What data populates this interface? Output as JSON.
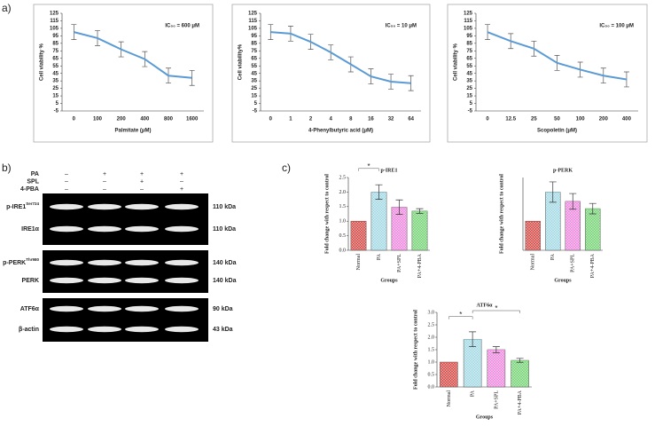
{
  "panel_labels": [
    "a)",
    "b)",
    "c)"
  ],
  "blot": {
    "treatments": [
      {
        "name": "PA",
        "signs": [
          "–",
          "+",
          "+",
          "+"
        ]
      },
      {
        "name": "SPL",
        "signs": [
          "–",
          "–",
          "+",
          "–"
        ]
      },
      {
        "name": "4-PBA",
        "signs": [
          "–",
          "–",
          "–",
          "+"
        ]
      }
    ],
    "proteins": [
      {
        "name": "p-IRE1",
        "superscript": "Ser724",
        "size": "110 kDa"
      },
      {
        "name": "IRE1α",
        "size": "110 kDa"
      },
      {
        "name": "p-PERK",
        "superscript": "Thr980",
        "size": "140 kDa"
      },
      {
        "name": "PERK",
        "size": "140 kDa"
      },
      {
        "name": "ATF6α",
        "size": "90 kDa"
      },
      {
        "name": "β-actin",
        "size": "43 kDa"
      }
    ]
  },
  "chart_data": [
    {
      "type": "line",
      "annotation": "IC₅₀ = 600 μM",
      "x_label": "Palmitate (μM)",
      "y_label": "Cell viability %",
      "categories": [
        "0",
        "100",
        "200",
        "400",
        "800",
        "1600"
      ],
      "values": [
        100,
        92,
        77,
        64,
        42,
        39
      ],
      "errors": [
        10,
        10,
        10,
        10,
        10,
        10
      ],
      "color": "#5b9bd5",
      "ylim": [
        -5,
        125
      ],
      "yticks": [
        -5,
        5,
        15,
        25,
        35,
        45,
        55,
        65,
        75,
        85,
        95,
        105,
        115,
        125
      ]
    },
    {
      "type": "line",
      "annotation": "IC₅₀ = 10 μM",
      "x_label": "4-Phenylbutyric acid (μM)",
      "y_label": "Cell viability%",
      "categories": [
        "0",
        "1",
        "2",
        "4",
        "8",
        "16",
        "32",
        "64"
      ],
      "values": [
        100,
        98,
        87,
        73,
        57,
        41,
        34,
        32
      ],
      "errors": [
        10,
        10,
        10,
        10,
        10,
        10,
        10,
        10
      ],
      "color": "#5b9bd5",
      "ylim": [
        -5,
        125
      ],
      "yticks": [
        -5,
        5,
        15,
        25,
        35,
        45,
        55,
        65,
        75,
        85,
        95,
        105,
        115,
        125
      ]
    },
    {
      "type": "line",
      "annotation": "IC₅₀ = 100 μM",
      "x_label": "Scopoletin (μM)",
      "y_label": "Cell viability %",
      "categories": [
        "0",
        "12.5",
        "25",
        "50",
        "100",
        "200",
        "400"
      ],
      "values": [
        100,
        88,
        78,
        59,
        50,
        42,
        37
      ],
      "errors": [
        10,
        10,
        10,
        10,
        10,
        10,
        10
      ],
      "color": "#5b9bd5",
      "ylim": [
        -5,
        125
      ],
      "yticks": [
        -5,
        5,
        15,
        25,
        35,
        45,
        55,
        65,
        75,
        85,
        95,
        105,
        115,
        125
      ]
    },
    {
      "type": "bar",
      "title": "p-IRE1",
      "x_label": "Groups",
      "y_label": "Fold change with respect to control",
      "categories": [
        "Normal",
        "PA",
        "PA+SPL",
        "PA+4-PBA"
      ],
      "values": [
        1.0,
        2.0,
        1.48,
        1.35
      ],
      "errors": [
        0,
        0.25,
        0.25,
        0.08
      ],
      "colors": [
        "#d9534f",
        "#a8dbe6",
        "#f08fe0",
        "#7ed67e"
      ],
      "annotations": [
        "*"
      ],
      "ylim": [
        0,
        2.5
      ],
      "yticks": [
        {
          "value": 0,
          "label": "0.0"
        },
        {
          "value": 0.5,
          "label": "0.5"
        },
        {
          "value": 1,
          "label": "1.0"
        },
        {
          "value": 1.5,
          "label": "1.5"
        },
        {
          "value": 2,
          "label": "2.0"
        },
        {
          "value": 2.5,
          "label": "2.5"
        }
      ]
    },
    {
      "type": "bar",
      "title": "p-PERK",
      "x_label": "Groups",
      "y_label": "Fold change with respect to control",
      "categories": [
        "Normal",
        "PA",
        "PA+SPL",
        "PA+4-PBA"
      ],
      "values": [
        1.0,
        2.0,
        1.68,
        1.43
      ],
      "errors": [
        0,
        0.35,
        0.27,
        0.18
      ],
      "colors": [
        "#d9534f",
        "#a8dbe6",
        "#f08fe0",
        "#7ed67e"
      ],
      "ylim": [
        0,
        2.5
      ]
    },
    {
      "type": "bar",
      "title": "ATF6α",
      "x_label": "Groups",
      "y_label": "Fold change with respect to control",
      "categories": [
        "Normal",
        "PA",
        "PA+SPL",
        "PA+4-PBA"
      ],
      "values": [
        1.0,
        1.92,
        1.5,
        1.07
      ],
      "errors": [
        0,
        0.3,
        0.12,
        0.08
      ],
      "colors": [
        "#d9534f",
        "#a8dbe6",
        "#f08fe0",
        "#7ed67e"
      ],
      "annotations": [
        "*",
        "*"
      ],
      "ylim": [
        0,
        3.0
      ],
      "yticks": [
        {
          "value": 0,
          "label": "0.0"
        },
        {
          "value": 0.5,
          "label": "0.5"
        },
        {
          "value": 1,
          "label": "1.0"
        },
        {
          "value": 1.5,
          "label": "1.5"
        },
        {
          "value": 2,
          "label": "2.0"
        },
        {
          "value": 2.5,
          "label": "2.5"
        },
        {
          "value": 3,
          "label": "3.0"
        }
      ]
    }
  ]
}
